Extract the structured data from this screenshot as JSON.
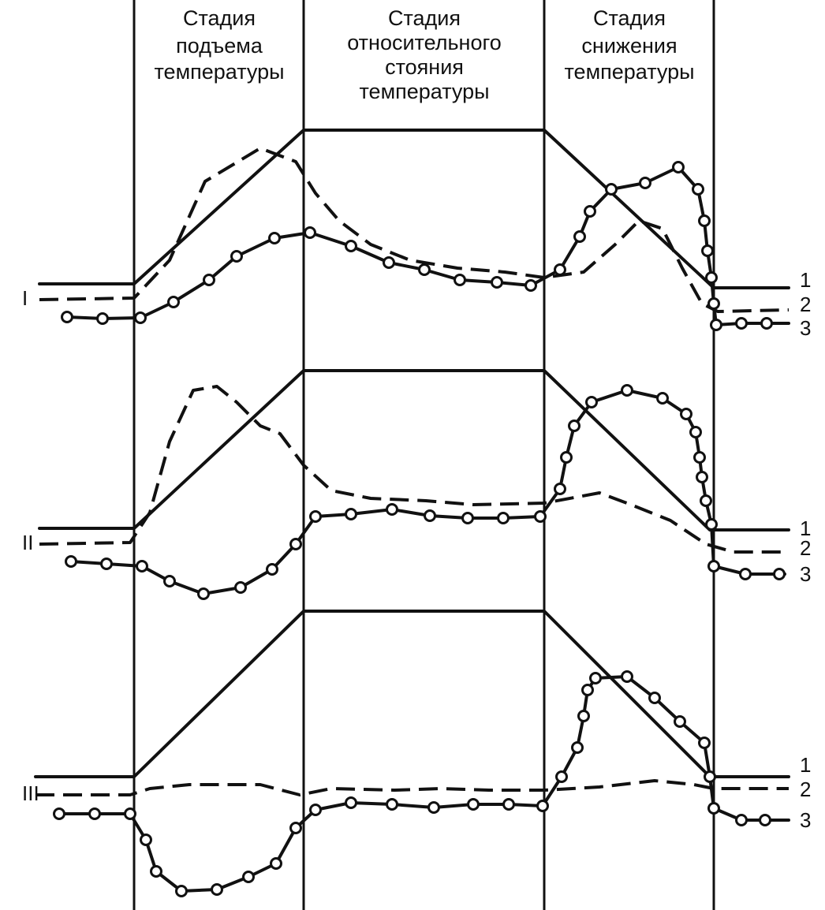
{
  "stages": [
    {
      "lines": [
        "Стадия",
        "подъема",
        "температуры"
      ]
    },
    {
      "lines": [
        "Стадия",
        "относительного",
        "стояния",
        "температуры"
      ]
    },
    {
      "lines": [
        "Стадия",
        "снижения",
        "температуры"
      ]
    }
  ],
  "rows": [
    {
      "label": "I",
      "curves": [
        "1",
        "2",
        "3"
      ]
    },
    {
      "label": "II",
      "curves": [
        "1",
        "2",
        "3"
      ]
    },
    {
      "label": "III",
      "curves": [
        "1",
        "2",
        "3"
      ]
    }
  ]
}
